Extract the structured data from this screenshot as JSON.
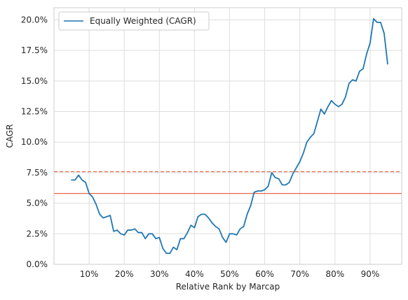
{
  "chart_data": {
    "type": "line",
    "title": "",
    "xlabel": "Relative Rank by Marcap",
    "ylabel": "CAGR",
    "xlim": [
      0.0,
      0.99
    ],
    "ylim": [
      0.0,
      0.21
    ],
    "grid": true,
    "legend_position": "top-left",
    "x_ticks": [
      {
        "value": 0.1,
        "label": "10%"
      },
      {
        "value": 0.2,
        "label": "20%"
      },
      {
        "value": 0.3,
        "label": "30%"
      },
      {
        "value": 0.4,
        "label": "40%"
      },
      {
        "value": 0.5,
        "label": "50%"
      },
      {
        "value": 0.6,
        "label": "60%"
      },
      {
        "value": 0.7,
        "label": "70%"
      },
      {
        "value": 0.8,
        "label": "80%"
      },
      {
        "value": 0.9,
        "label": "90%"
      }
    ],
    "y_ticks": [
      {
        "value": 0.0,
        "label": "0.0%"
      },
      {
        "value": 0.025,
        "label": "2.5%"
      },
      {
        "value": 0.05,
        "label": "5.0%"
      },
      {
        "value": 0.075,
        "label": "7.5%"
      },
      {
        "value": 0.1,
        "label": "10.0%"
      },
      {
        "value": 0.125,
        "label": "12.5%"
      },
      {
        "value": 0.15,
        "label": "15.0%"
      },
      {
        "value": 0.175,
        "label": "17.5%"
      },
      {
        "value": 0.2,
        "label": "20.0%"
      }
    ],
    "series": [
      {
        "name": "Equally Weighted (CAGR)",
        "color": "#1f77b4",
        "x": [
          0.05,
          0.06,
          0.07,
          0.08,
          0.09,
          0.1,
          0.11,
          0.12,
          0.13,
          0.14,
          0.15,
          0.16,
          0.17,
          0.18,
          0.19,
          0.2,
          0.21,
          0.22,
          0.23,
          0.24,
          0.25,
          0.26,
          0.27,
          0.28,
          0.29,
          0.3,
          0.31,
          0.32,
          0.33,
          0.34,
          0.35,
          0.36,
          0.37,
          0.38,
          0.39,
          0.4,
          0.41,
          0.42,
          0.43,
          0.44,
          0.45,
          0.46,
          0.47,
          0.48,
          0.49,
          0.5,
          0.51,
          0.52,
          0.53,
          0.54,
          0.55,
          0.56,
          0.57,
          0.58,
          0.59,
          0.6,
          0.61,
          0.62,
          0.63,
          0.64,
          0.65,
          0.66,
          0.67,
          0.68,
          0.69,
          0.7,
          0.71,
          0.72,
          0.73,
          0.74,
          0.75,
          0.76,
          0.77,
          0.78,
          0.79,
          0.8,
          0.81,
          0.82,
          0.83,
          0.84,
          0.85,
          0.86,
          0.87,
          0.88,
          0.89,
          0.9,
          0.91,
          0.92,
          0.93,
          0.94,
          0.95
        ],
        "y": [
          0.069,
          0.069,
          0.073,
          0.069,
          0.067,
          0.058,
          0.055,
          0.049,
          0.041,
          0.038,
          0.039,
          0.04,
          0.027,
          0.028,
          0.025,
          0.024,
          0.028,
          0.028,
          0.029,
          0.026,
          0.026,
          0.021,
          0.025,
          0.025,
          0.021,
          0.022,
          0.013,
          0.009,
          0.009,
          0.014,
          0.012,
          0.021,
          0.021,
          0.026,
          0.032,
          0.03,
          0.039,
          0.041,
          0.041,
          0.038,
          0.034,
          0.031,
          0.029,
          0.022,
          0.018,
          0.025,
          0.025,
          0.024,
          0.029,
          0.031,
          0.041,
          0.048,
          0.059,
          0.06,
          0.06,
          0.061,
          0.064,
          0.075,
          0.071,
          0.07,
          0.065,
          0.065,
          0.067,
          0.074,
          0.079,
          0.084,
          0.091,
          0.1,
          0.104,
          0.107,
          0.117,
          0.127,
          0.123,
          0.129,
          0.134,
          0.131,
          0.129,
          0.131,
          0.137,
          0.148,
          0.151,
          0.15,
          0.158,
          0.16,
          0.172,
          0.181,
          0.201,
          0.198,
          0.198,
          0.189,
          0.164
        ]
      }
    ],
    "reference_lines": [
      {
        "value": 0.058,
        "color": "#e8674a",
        "style": "solid"
      },
      {
        "value": 0.0758,
        "color": "#e8674a",
        "style": "dashed"
      }
    ]
  }
}
